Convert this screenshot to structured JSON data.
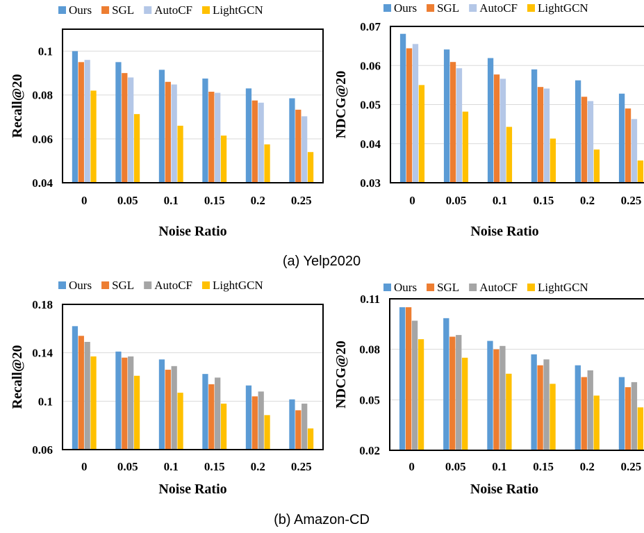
{
  "captions": [
    "(a) Yelp2020",
    "(b) Amazon-CD"
  ],
  "colors": {
    "Ours": "#5b9bd5",
    "SGL": "#ed7d31",
    "AutoCF_light": "#b4c7e7",
    "AutoCF_gray": "#a5a5a5",
    "LightGCN": "#ffc000"
  },
  "chart_data": [
    {
      "type": "bar",
      "dataset": "Yelp2020",
      "categories": [
        "0",
        "0.05",
        "0.1",
        "0.15",
        "0.2",
        "0.25"
      ],
      "xlabel": "Noise Ratio",
      "ylabel": "Recall@20",
      "ylim": [
        0.04,
        0.11
      ],
      "yticks": [
        "0.04",
        "0.06",
        "0.08",
        "0.1"
      ],
      "legend": [
        "Ours",
        "SGL",
        "AutoCF",
        "LightGCN"
      ],
      "legend_position": "top",
      "series": [
        {
          "name": "Ours",
          "color": "#5b9bd5",
          "values": [
            0.1,
            0.095,
            0.0915,
            0.0875,
            0.083,
            0.0785
          ]
        },
        {
          "name": "SGL",
          "color": "#ed7d31",
          "values": [
            0.095,
            0.09,
            0.086,
            0.0815,
            0.0775,
            0.0733
          ]
        },
        {
          "name": "AutoCF",
          "color": "#b4c7e7",
          "values": [
            0.096,
            0.088,
            0.0848,
            0.081,
            0.0765,
            0.0703
          ]
        },
        {
          "name": "LightGCN",
          "color": "#ffc000",
          "values": [
            0.082,
            0.0713,
            0.066,
            0.0615,
            0.0575,
            0.054
          ]
        }
      ]
    },
    {
      "type": "bar",
      "dataset": "Yelp2020",
      "categories": [
        "0",
        "0.05",
        "0.1",
        "0.15",
        "0.2",
        "0.25"
      ],
      "xlabel": "Noise  Ratio",
      "ylabel": "NDCG@20",
      "ylim": [
        0.03,
        0.07
      ],
      "yticks": [
        "0.03",
        "0.04",
        "0.05",
        "0.06",
        "0.07"
      ],
      "legend": [
        "Ours",
        "SGL",
        "AutoCF",
        "LightGCN"
      ],
      "legend_position": "top",
      "series": [
        {
          "name": "Ours",
          "color": "#5b9bd5",
          "values": [
            0.0681,
            0.0641,
            0.0619,
            0.059,
            0.0562,
            0.0528
          ]
        },
        {
          "name": "SGL",
          "color": "#ed7d31",
          "values": [
            0.0644,
            0.0609,
            0.0577,
            0.0545,
            0.052,
            0.049
          ]
        },
        {
          "name": "AutoCF",
          "color": "#b4c7e7",
          "values": [
            0.0655,
            0.0593,
            0.0566,
            0.0541,
            0.0509,
            0.0463
          ]
        },
        {
          "name": "LightGCN",
          "color": "#ffc000",
          "values": [
            0.055,
            0.0482,
            0.0443,
            0.0413,
            0.0385,
            0.0357
          ]
        }
      ]
    },
    {
      "type": "bar",
      "dataset": "Amazon-CD",
      "categories": [
        "0",
        "0.05",
        "0.1",
        "0.15",
        "0.2",
        "0.25"
      ],
      "xlabel": "Noise Ratio",
      "ylabel": "Recall@20",
      "ylim": [
        0.06,
        0.18
      ],
      "yticks": [
        "0.06",
        "0.1",
        "0.14",
        "0.18"
      ],
      "legend": [
        "Ours",
        "SGL",
        "AutoCF",
        "LightGCN"
      ],
      "legend_position": "top",
      "series": [
        {
          "name": "Ours",
          "color": "#5b9bd5",
          "values": [
            0.162,
            0.141,
            0.1345,
            0.1225,
            0.113,
            0.1015
          ]
        },
        {
          "name": "SGL",
          "color": "#ed7d31",
          "values": [
            0.154,
            0.136,
            0.126,
            0.114,
            0.104,
            0.0925
          ]
        },
        {
          "name": "AutoCF",
          "color": "#a5a5a5",
          "values": [
            0.149,
            0.137,
            0.129,
            0.1195,
            0.108,
            0.098
          ]
        },
        {
          "name": "LightGCN",
          "color": "#ffc000",
          "values": [
            0.137,
            0.121,
            0.107,
            0.098,
            0.0885,
            0.0775
          ]
        }
      ]
    },
    {
      "type": "bar",
      "dataset": "Amazon-CD",
      "categories": [
        "0",
        "0.05",
        "0.1",
        "0.15",
        "0.2",
        "0.25"
      ],
      "xlabel": "Noise Ratio",
      "ylabel": "NDCG@20",
      "ylim": [
        0.02,
        0.11
      ],
      "yticks": [
        "0.02",
        "0.05",
        "0.08",
        "0.11"
      ],
      "legend": [
        "Ours",
        "SGL",
        "AutoCF",
        "LightGCN"
      ],
      "legend_position": "top",
      "series": [
        {
          "name": "Ours",
          "color": "#5b9bd5",
          "values": [
            0.105,
            0.0985,
            0.085,
            0.077,
            0.0705,
            0.0635
          ]
        },
        {
          "name": "SGL",
          "color": "#ed7d31",
          "values": [
            0.105,
            0.0875,
            0.08,
            0.0705,
            0.0635,
            0.0575
          ]
        },
        {
          "name": "AutoCF",
          "color": "#a5a5a5",
          "values": [
            0.097,
            0.0885,
            0.082,
            0.074,
            0.0675,
            0.0605
          ]
        },
        {
          "name": "LightGCN",
          "color": "#ffc000",
          "values": [
            0.086,
            0.075,
            0.0655,
            0.0595,
            0.0525,
            0.0455
          ]
        }
      ]
    }
  ]
}
